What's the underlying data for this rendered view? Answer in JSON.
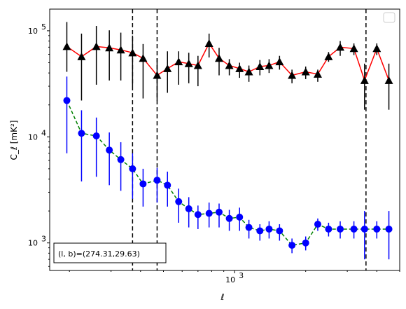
{
  "chart_data": {
    "type": "line",
    "x_scale": "log",
    "y_scale": "log",
    "xlabel": "ℓ",
    "ylabel": "C_ℓ  [mK²]",
    "xlim": [
      165,
      5000
    ],
    "ylim": [
      550,
      160000
    ],
    "x_tick_labels": [
      {
        "value": 1000,
        "base": "10",
        "exp": "3"
      }
    ],
    "y_tick_labels": [
      {
        "value": 1000,
        "base": "10",
        "exp": "3"
      },
      {
        "value": 10000,
        "base": "10",
        "exp": "4"
      },
      {
        "value": 100000,
        "base": "10",
        "exp": "5"
      }
    ],
    "annotation": "(l, b)=(274.31,29.63)",
    "legend": {
      "placement": "top-right",
      "entries": []
    },
    "vlines": [
      370,
      470,
      3600
    ],
    "series": [
      {
        "marker": "triangle",
        "color": "#000000",
        "line_color": "#ff0000",
        "line_style": "solid",
        "x": [
          195,
          225,
          260,
          295,
          330,
          370,
          410,
          470,
          520,
          580,
          640,
          700,
          780,
          860,
          950,
          1050,
          1150,
          1280,
          1400,
          1550,
          1750,
          2000,
          2250,
          2500,
          2800,
          3200,
          3550,
          4000,
          4500
        ],
        "y": [
          71000,
          57000,
          71000,
          69000,
          66000,
          62000,
          55000,
          38000,
          44000,
          51000,
          49000,
          47000,
          76000,
          55000,
          47000,
          44000,
          41000,
          46000,
          47000,
          51000,
          38000,
          41000,
          39000,
          57000,
          70000,
          68000,
          34000,
          68000,
          34000
        ],
        "yerr_low": [
          30000,
          35000,
          40000,
          35000,
          32000,
          32000,
          32000,
          16000,
          18000,
          20000,
          17000,
          17000,
          20000,
          17000,
          9000,
          8000,
          8000,
          8000,
          7000,
          8000,
          6000,
          6000,
          6000,
          6000,
          12000,
          9000,
          16000,
          9000,
          16000
        ],
        "yerr_high": [
          50000,
          37000,
          40000,
          32000,
          30000,
          28000,
          20000,
          17000,
          20000,
          13000,
          13000,
          11000,
          18000,
          14000,
          7000,
          6000,
          6000,
          7000,
          7000,
          7000,
          5000,
          5000,
          4000,
          6000,
          10000,
          8000,
          15000,
          8000,
          15000
        ]
      },
      {
        "marker": "circle",
        "color": "#0000ff",
        "line_color": "#008000",
        "line_style": "dashed",
        "x": [
          195,
          225,
          260,
          295,
          330,
          370,
          410,
          470,
          520,
          580,
          640,
          700,
          780,
          860,
          950,
          1050,
          1150,
          1280,
          1400,
          1550,
          1750,
          2000,
          2250,
          2500,
          2800,
          3200,
          3550,
          4000,
          4500
        ],
        "y": [
          22000,
          10800,
          10200,
          7500,
          6100,
          5000,
          3600,
          3900,
          3500,
          2450,
          2100,
          1850,
          1900,
          1950,
          1700,
          1750,
          1400,
          1300,
          1350,
          1300,
          950,
          1000,
          1500,
          1350,
          1350,
          1350,
          1350,
          1350,
          1350
        ],
        "yerr_low": [
          15000,
          7000,
          6000,
          4000,
          3000,
          2400,
          1400,
          1500,
          1300,
          900,
          700,
          500,
          500,
          550,
          400,
          450,
          300,
          250,
          250,
          250,
          150,
          150,
          200,
          200,
          250,
          250,
          650,
          250,
          650
        ],
        "yerr_high": [
          15000,
          7000,
          5000,
          3500,
          2800,
          2000,
          1400,
          1200,
          1200,
          800,
          600,
          400,
          500,
          400,
          350,
          400,
          250,
          200,
          250,
          200,
          150,
          150,
          200,
          200,
          250,
          250,
          650,
          250,
          650
        ]
      }
    ]
  }
}
